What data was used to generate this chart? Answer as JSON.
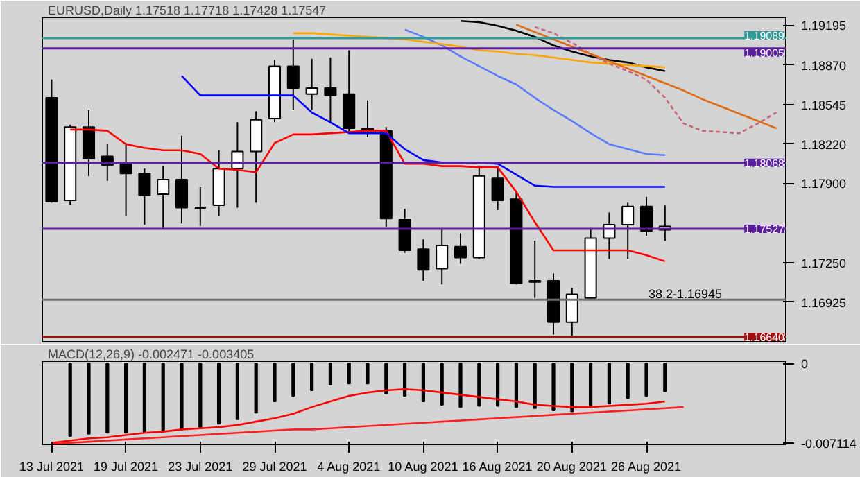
{
  "chart_data": [
    {
      "type": "candlestick",
      "title": "EURUSD,Daily  1.17518 1.17718 1.17428 1.17547",
      "tick_labels": "y",
      "categories": [
        null,
        null,
        null,
        null,
        null,
        null,
        null,
        null,
        null,
        null,
        null,
        null,
        null,
        null,
        null,
        null,
        null,
        null,
        null,
        null,
        null,
        null,
        null,
        null,
        null,
        null,
        null,
        null,
        null,
        null,
        null,
        null,
        null,
        null,
        null,
        null,
        null,
        null,
        null,
        null
      ],
      "ohlc": [
        [
          1.186,
          1.1875,
          1.1774,
          1.1775
        ],
        [
          1.1776,
          1.1838,
          1.1772,
          1.1836
        ],
        [
          1.1836,
          1.185,
          1.1796,
          1.181
        ],
        [
          1.1812,
          1.1822,
          1.1792,
          1.1805
        ],
        [
          1.1806,
          1.1823,
          1.1763,
          1.1798
        ],
        [
          1.1798,
          1.1802,
          1.1756,
          1.178
        ],
        [
          1.1781,
          1.1804,
          1.1752,
          1.1793
        ],
        [
          1.1793,
          1.1829,
          1.1757,
          1.177
        ],
        [
          1.177,
          1.1787,
          1.1755,
          1.177
        ],
        [
          1.1772,
          1.1817,
          1.1763,
          1.1802
        ],
        [
          1.1802,
          1.184,
          1.177,
          1.1816
        ],
        [
          1.1816,
          1.1849,
          1.1774,
          1.1842
        ],
        [
          1.1843,
          1.1891,
          1.184,
          1.1886
        ],
        [
          1.1886,
          1.1908,
          1.185,
          1.1868
        ],
        [
          1.1863,
          1.1892,
          1.185,
          1.1868
        ],
        [
          1.1868,
          1.1893,
          1.1839,
          1.1862
        ],
        [
          1.1863,
          1.1899,
          1.1831,
          1.1835
        ],
        [
          1.1835,
          1.1858,
          1.1828,
          1.1833
        ],
        [
          1.1833,
          1.1836,
          1.1754,
          1.1761
        ],
        [
          1.176,
          1.1769,
          1.1733,
          1.1735
        ],
        [
          1.1736,
          1.1744,
          1.171,
          1.1719
        ],
        [
          1.172,
          1.1752,
          1.1707,
          1.1739
        ],
        [
          1.1738,
          1.1749,
          1.1724,
          1.1729
        ],
        [
          1.1729,
          1.1804,
          1.1728,
          1.1796
        ],
        [
          1.1794,
          1.1804,
          1.1768,
          1.1776
        ],
        [
          1.1777,
          1.1783,
          1.1707,
          1.1708
        ],
        [
          1.171,
          1.1743,
          1.1696,
          1.1709
        ],
        [
          1.171,
          1.1716,
          1.1666,
          1.1676
        ],
        [
          1.1676,
          1.1704,
          1.1665,
          1.1699
        ],
        [
          1.1696,
          1.1752,
          1.1694,
          1.1745
        ],
        [
          1.1745,
          1.1766,
          1.1728,
          1.1756
        ],
        [
          1.1756,
          1.1774,
          1.1728,
          1.1771
        ],
        [
          1.1771,
          1.1779,
          1.1747,
          1.1751
        ],
        [
          1.17518,
          1.17718,
          1.17428,
          1.17547
        ],
        null,
        null,
        null,
        null,
        null,
        null
      ],
      "colors": [
        "#000000",
        "#ffffff",
        "#000000",
        "#000000",
        "#000000",
        "#000000",
        "#ffffff",
        "#000000",
        "#000000",
        "#ffffff",
        "#ffffff",
        "#ffffff",
        "#ffffff",
        "#000000",
        "#ffffff",
        "#000000",
        "#000000",
        "#000000",
        "#000000",
        "#000000",
        "#000000",
        "#ffffff",
        "#000000",
        "#ffffff",
        "#000000",
        "#000000",
        "#000000",
        "#000000",
        "#ffffff",
        "#ffffff",
        "#ffffff",
        "#ffffff",
        "#000000",
        "#ffffff",
        null,
        null,
        null,
        null,
        null,
        null
      ],
      "ylim": [
        1.166,
        1.1926
      ],
      "yticks": [
        {
          "value": 1.19195,
          "label": "1.19195"
        },
        {
          "value": 1.1887,
          "label": "1.18870"
        },
        {
          "value": 1.18545,
          "label": "1.18545"
        },
        {
          "value": 1.1822,
          "label": "1.18220"
        },
        {
          "value": 1.179,
          "label": "1.17900"
        },
        {
          "value": 1.1725,
          "label": "1.17250"
        },
        {
          "value": 1.16925,
          "label": "1.16925"
        }
      ],
      "series": [
        {
          "type": "line",
          "color": "#ff0000",
          "values": [
            null,
            1.1834,
            1.1834,
            1.1833,
            1.1822,
            1.1819,
            1.1817,
            1.1817,
            1.1814,
            1.1802,
            1.1801,
            1.1799,
            1.1823,
            1.183,
            1.183,
            1.1831,
            1.1832,
            1.1833,
            1.1833,
            1.1806,
            1.1806,
            1.1804,
            1.1804,
            1.1803,
            1.1803,
            1.1783,
            1.1758,
            1.1735,
            1.1735,
            1.1735,
            1.1735,
            1.1735,
            1.1731,
            1.1726,
            null,
            null,
            null,
            null,
            null,
            null
          ]
        },
        {
          "type": "line",
          "color": "#0000ff",
          "values": [
            null,
            null,
            null,
            null,
            null,
            null,
            null,
            1.1878,
            1.1862,
            1.1862,
            1.1862,
            1.1862,
            1.1862,
            1.1862,
            1.1848,
            1.184,
            1.1831,
            1.1831,
            1.1831,
            1.1818,
            1.1809,
            1.1807,
            1.1807,
            1.1807,
            1.1806,
            1.1797,
            1.1788,
            1.1787,
            1.1787,
            1.1787,
            1.1787,
            1.1787,
            1.1787,
            1.1787,
            null,
            null,
            null,
            null,
            null,
            null
          ]
        },
        {
          "type": "line",
          "color": "#5b7bff",
          "values": [
            null,
            null,
            null,
            null,
            null,
            null,
            null,
            null,
            null,
            null,
            null,
            null,
            null,
            null,
            null,
            null,
            null,
            null,
            null,
            1.1916,
            1.191,
            1.1903,
            1.1894,
            1.1886,
            1.1878,
            1.1871,
            1.186,
            1.185,
            1.1841,
            1.1831,
            1.1822,
            1.1818,
            1.1814,
            1.1813,
            null,
            null,
            null,
            null,
            null,
            null
          ]
        },
        {
          "type": "line",
          "color": "#000000",
          "values": [
            null,
            null,
            null,
            null,
            null,
            null,
            null,
            null,
            null,
            null,
            null,
            null,
            null,
            null,
            null,
            null,
            null,
            null,
            null,
            null,
            null,
            null,
            1.1923,
            1.1922,
            1.1919,
            1.1915,
            1.191,
            1.1903,
            1.1898,
            1.1894,
            1.1891,
            1.1889,
            1.1885,
            1.1882,
            null,
            null,
            null,
            null,
            null,
            null
          ]
        },
        {
          "type": "line",
          "color": "#ffa500",
          "values": [
            null,
            null,
            null,
            null,
            null,
            null,
            null,
            null,
            null,
            null,
            null,
            null,
            null,
            1.1913,
            1.1913,
            1.1912,
            1.1911,
            1.191,
            1.1909,
            1.1908,
            1.1906,
            1.1904,
            1.1902,
            1.1899,
            1.1898,
            1.1896,
            1.1895,
            1.1893,
            1.1891,
            1.1889,
            1.1888,
            1.1887,
            1.1886,
            1.1885,
            null,
            null,
            null,
            null,
            null,
            null
          ]
        },
        {
          "type": "line",
          "color": "#c86478",
          "line_style": "dashed",
          "values": [
            null,
            null,
            null,
            null,
            null,
            null,
            null,
            null,
            null,
            null,
            null,
            null,
            null,
            null,
            null,
            null,
            null,
            null,
            null,
            null,
            null,
            null,
            null,
            null,
            null,
            null,
            1.1918,
            1.1913,
            1.1905,
            1.1896,
            1.1888,
            1.1882,
            1.1875,
            1.186,
            1.1839,
            1.1833,
            1.1832,
            1.1831,
            1.1839,
            1.1848
          ]
        },
        {
          "type": "line",
          "color": "#e06a10",
          "values": [
            null,
            null,
            null,
            null,
            null,
            null,
            null,
            null,
            null,
            null,
            null,
            null,
            null,
            null,
            null,
            null,
            null,
            null,
            null,
            null,
            null,
            null,
            null,
            null,
            null,
            1.192,
            1.1914,
            1.1908,
            1.1902,
            1.1896,
            1.189,
            1.1884,
            1.1878,
            1.1872,
            1.1866,
            1.1859,
            1.1853,
            1.1847,
            1.1841,
            1.1835
          ]
        }
      ],
      "ref_lines": [
        {
          "axis": "y",
          "value": 1.19089,
          "label": "1.19089",
          "color": "#2e9a9a"
        },
        {
          "axis": "y",
          "value": 1.19005,
          "label": "1.19005",
          "color": "#5b1f9e"
        },
        {
          "axis": "y",
          "value": 1.18068,
          "label": "1.18068",
          "color": "#5b1f9e"
        },
        {
          "axis": "y",
          "value": 1.17527,
          "label": "1.17527",
          "color": "#5b1f9e"
        },
        {
          "axis": "y",
          "value": 1.16945,
          "label": null,
          "color": "#707070"
        },
        {
          "axis": "y",
          "value": 1.1664,
          "label": "1.16640",
          "color": "#a01010"
        }
      ],
      "annotations": [
        {
          "text": "38.2-1.16945",
          "y": 1.16945
        }
      ]
    },
    {
      "type": "bar",
      "title": "MACD(12,26,9) -0.002471 -0.003405",
      "categories": [
        "13 Jul 2021",
        null,
        null,
        null,
        "19 Jul 2021",
        null,
        null,
        null,
        "23 Jul 2021",
        null,
        null,
        null,
        "29 Jul 2021",
        null,
        null,
        null,
        "4 Aug 2021",
        null,
        null,
        null,
        "10 Aug 2021",
        null,
        null,
        null,
        "16 Aug 2021",
        null,
        null,
        null,
        "20 Aug 2021",
        null,
        null,
        null,
        "26 Aug 2021",
        null,
        null,
        null,
        null,
        null,
        null,
        null
      ],
      "ylim": [
        -0.00724,
        0.0002
      ],
      "yticks": [
        0,
        {
          "value": -0.007114,
          "label": "-0.007114"
        }
      ],
      "series": [
        {
          "type": "bar",
          "color": "#000000",
          "values": [
            null,
            -0.0065,
            -0.0063,
            -0.0062,
            -0.0062,
            -0.0061,
            -0.006,
            -0.0059,
            -0.0057,
            -0.0054,
            -0.005,
            -0.0044,
            -0.0034,
            -0.0029,
            -0.0024,
            -0.0019,
            -0.0018,
            -0.0018,
            -0.0027,
            -0.0029,
            -0.0034,
            -0.0037,
            -0.0039,
            -0.0038,
            -0.0038,
            -0.0039,
            -0.004,
            -0.0042,
            -0.0043,
            -0.0039,
            -0.0036,
            -0.0031,
            -0.0029,
            -0.0025,
            null,
            null,
            null,
            null,
            null,
            null
          ]
        },
        {
          "type": "line",
          "color": "#ff0000",
          "values": [
            -0.0071,
            -0.0069,
            -0.0067,
            -0.0066,
            -0.0064,
            -0.0062,
            -0.0061,
            -0.0059,
            -0.0058,
            -0.0057,
            -0.0055,
            -0.0052,
            -0.0049,
            -0.0045,
            -0.0039,
            -0.0034,
            -0.0029,
            -0.0026,
            -0.0024,
            -0.0023,
            -0.0024,
            -0.0026,
            -0.0028,
            -0.003,
            -0.0032,
            -0.0034,
            -0.0037,
            -0.0038,
            -0.0039,
            -0.0039,
            -0.0038,
            -0.0037,
            -0.0036,
            -0.0034,
            null,
            null,
            null,
            null,
            null,
            null
          ]
        },
        {
          "type": "line",
          "color": "#ff2020",
          "values": [
            -0.0072,
            -0.0071,
            -0.007,
            -0.0069,
            -0.0068,
            -0.0067,
            -0.0066,
            -0.0065,
            -0.0064,
            -0.0063,
            -0.0062,
            -0.0061,
            -0.006,
            -0.0059,
            -0.0059,
            -0.0058,
            -0.0057,
            -0.0056,
            -0.0055,
            -0.0054,
            -0.0053,
            -0.0052,
            -0.0051,
            -0.005,
            -0.0049,
            -0.0048,
            -0.0047,
            -0.0046,
            -0.0045,
            -0.0044,
            -0.0043,
            -0.0042,
            -0.0041,
            -0.004,
            -0.0039,
            null,
            null,
            null,
            null,
            null
          ]
        }
      ]
    }
  ]
}
